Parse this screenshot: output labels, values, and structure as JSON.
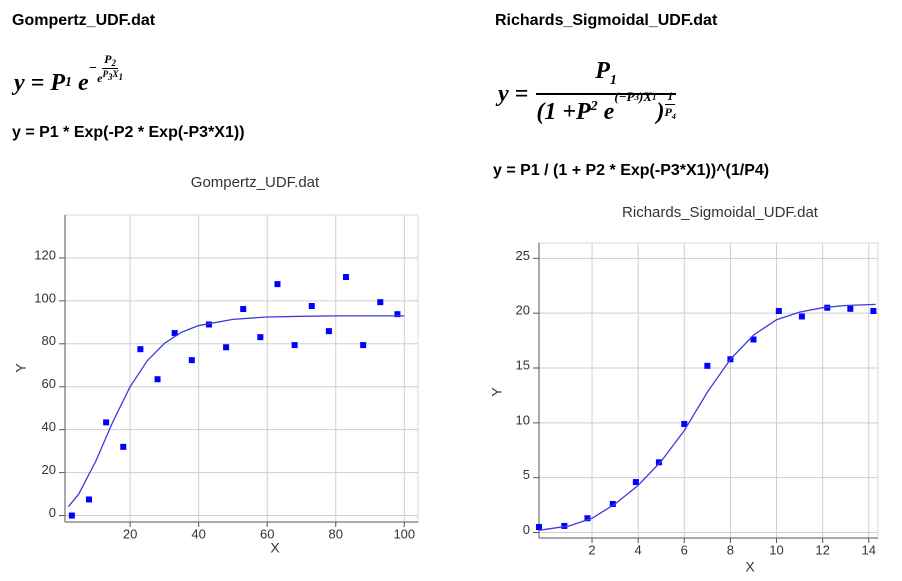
{
  "chart_data": [
    {
      "type": "scatter",
      "heading": "Gompertz_UDF.dat",
      "formula_math": [
        "y =",
        "P",
        "1",
        "e",
        "−",
        "P",
        "2",
        "e",
        "P",
        "3",
        "X",
        "1"
      ],
      "formula_text": "y = P1 * Exp(-P2 * Exp(-P3*X1))",
      "title": "Gompertz_UDF.dat",
      "x_label": "X",
      "y_label": "Y",
      "xlim": [
        1,
        104
      ],
      "ylim": [
        -3,
        140
      ],
      "xticks": [
        20,
        40,
        60,
        80,
        100
      ],
      "yticks": [
        0,
        20,
        40,
        60,
        80,
        100,
        120
      ],
      "grid": true,
      "series": [
        {
          "type": "scatter",
          "color": "#0000ff",
          "x": [
            3,
            8,
            13,
            18,
            23,
            28,
            33,
            38,
            43,
            48,
            53,
            58,
            63,
            68,
            73,
            78,
            83,
            88,
            93,
            98
          ],
          "values": [
            0,
            7.5,
            43.4,
            32,
            77.5,
            63.5,
            85,
            72.4,
            89,
            78.4,
            96.2,
            83.1,
            107.8,
            79.4,
            97.6,
            85.9,
            111.1,
            79.4,
            99.4,
            93.8
          ]
        },
        {
          "type": "line",
          "color": "#3c3cdc",
          "x": [
            2,
            5,
            10,
            15,
            20,
            25,
            30,
            35,
            40,
            50,
            60,
            70,
            80,
            100
          ],
          "values": [
            4.2,
            10,
            25.4,
            43.8,
            60,
            72.1,
            80.2,
            85.4,
            88.5,
            91.4,
            92.5,
            92.8,
            93,
            93
          ]
        }
      ]
    },
    {
      "type": "scatter",
      "heading": "Richards_Sigmoidal_UDF.dat",
      "formula_math": [
        "y =",
        "P",
        "1",
        "(1 + ",
        "P",
        "2",
        "e",
        "(−",
        "P",
        "3",
        ")",
        "X",
        "1",
        ")",
        "1",
        "P",
        "4"
      ],
      "formula_text": "y = P1 / (1 + P2 * Exp(-P3*X1))^(1/P4)",
      "title": "Richards_Sigmoidal_UDF.dat",
      "x_label": "X",
      "y_label": "Y",
      "xlim": [
        -0.3,
        14.4
      ],
      "ylim": [
        -0.5,
        26.4
      ],
      "xticks": [
        2,
        4,
        6,
        8,
        10,
        12,
        14
      ],
      "yticks": [
        0,
        5,
        10,
        15,
        20,
        25
      ],
      "grid": true,
      "series": [
        {
          "type": "scatter",
          "color": "#0000ff",
          "x": [
            -0.3,
            0.8,
            1.8,
            2.9,
            3.9,
            4.9,
            6.0,
            7.0,
            8.0,
            9.0,
            10.1,
            11.1,
            12.2,
            13.2,
            14.2
          ],
          "values": [
            0.5,
            0.6,
            1.3,
            2.6,
            4.6,
            6.4,
            9.9,
            15.2,
            15.8,
            17.6,
            20.2,
            19.7,
            20.5,
            20.4,
            20.2
          ]
        },
        {
          "type": "line",
          "color": "#3c3cdc",
          "x": [
            -0.3,
            1,
            2,
            3,
            4,
            5,
            6,
            7,
            8,
            9,
            10,
            11,
            12,
            13,
            14.3
          ],
          "values": [
            0.2,
            0.6,
            1.3,
            2.6,
            4.3,
            6.5,
            9.3,
            12.8,
            15.8,
            18,
            19.4,
            20.1,
            20.5,
            20.7,
            20.8
          ]
        }
      ]
    }
  ]
}
